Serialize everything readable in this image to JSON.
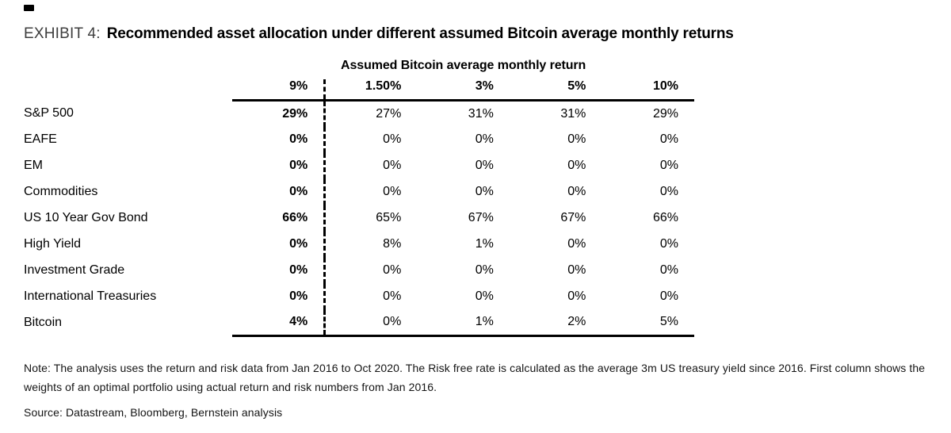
{
  "page": {
    "exhibit_label": "EXHIBIT 4:",
    "exhibit_title": "Recommended asset allocation under different assumed Bitcoin average monthly returns"
  },
  "table": {
    "group_header": "Assumed Bitcoin average monthly return",
    "columns": [
      "9%",
      "1.50%",
      "3%",
      "5%",
      "10%"
    ],
    "rows": [
      {
        "label": "S&P 500",
        "values": [
          "29%",
          "27%",
          "31%",
          "31%",
          "29%"
        ]
      },
      {
        "label": "EAFE",
        "values": [
          "0%",
          "0%",
          "0%",
          "0%",
          "0%"
        ]
      },
      {
        "label": "EM",
        "values": [
          "0%",
          "0%",
          "0%",
          "0%",
          "0%"
        ]
      },
      {
        "label": "Commodities",
        "values": [
          "0%",
          "0%",
          "0%",
          "0%",
          "0%"
        ]
      },
      {
        "label": "US 10 Year Gov Bond",
        "values": [
          "66%",
          "65%",
          "67%",
          "67%",
          "66%"
        ]
      },
      {
        "label": "High Yield",
        "values": [
          "0%",
          "8%",
          "1%",
          "0%",
          "0%"
        ]
      },
      {
        "label": "Investment Grade",
        "values": [
          "0%",
          "0%",
          "0%",
          "0%",
          "0%"
        ]
      },
      {
        "label": "International Treasuries",
        "values": [
          "0%",
          "0%",
          "0%",
          "0%",
          "0%"
        ]
      },
      {
        "label": "Bitcoin",
        "values": [
          "4%",
          "0%",
          "1%",
          "2%",
          "5%"
        ]
      }
    ]
  },
  "footer": {
    "note": "Note: The analysis uses the return and risk data from Jan 2016 to Oct 2020. The Risk free rate is calculated as the average 3m US treasury yield since 2016. First column shows the weights of an optimal portfolio using actual return and risk numbers from Jan 2016.",
    "source": "Source: Datastream, Bloomberg, Bernstein analysis"
  },
  "chart_data": {
    "type": "table",
    "title": "Recommended asset allocation under different assumed Bitcoin average monthly returns",
    "column_group_label": "Assumed Bitcoin average monthly return",
    "columns": [
      "9%",
      "1.50%",
      "3%",
      "5%",
      "10%"
    ],
    "unit": "%",
    "rows": [
      {
        "label": "S&P 500",
        "values": [
          29,
          27,
          31,
          31,
          29
        ]
      },
      {
        "label": "EAFE",
        "values": [
          0,
          0,
          0,
          0,
          0
        ]
      },
      {
        "label": "EM",
        "values": [
          0,
          0,
          0,
          0,
          0
        ]
      },
      {
        "label": "Commodities",
        "values": [
          0,
          0,
          0,
          0,
          0
        ]
      },
      {
        "label": "US 10 Year Gov Bond",
        "values": [
          66,
          65,
          67,
          67,
          66
        ]
      },
      {
        "label": "High Yield",
        "values": [
          0,
          8,
          1,
          0,
          0
        ]
      },
      {
        "label": "Investment Grade",
        "values": [
          0,
          0,
          0,
          0,
          0
        ]
      },
      {
        "label": "International Treasuries",
        "values": [
          0,
          0,
          0,
          0,
          0
        ]
      },
      {
        "label": "Bitcoin",
        "values": [
          4,
          0,
          1,
          2,
          5
        ]
      }
    ],
    "layout_hints": {
      "first_column_bold": true,
      "dashed_divider_after_column": "9%",
      "thick_rule_above_first_data_row": true,
      "thick_rule_below_last_data_row": true
    }
  }
}
